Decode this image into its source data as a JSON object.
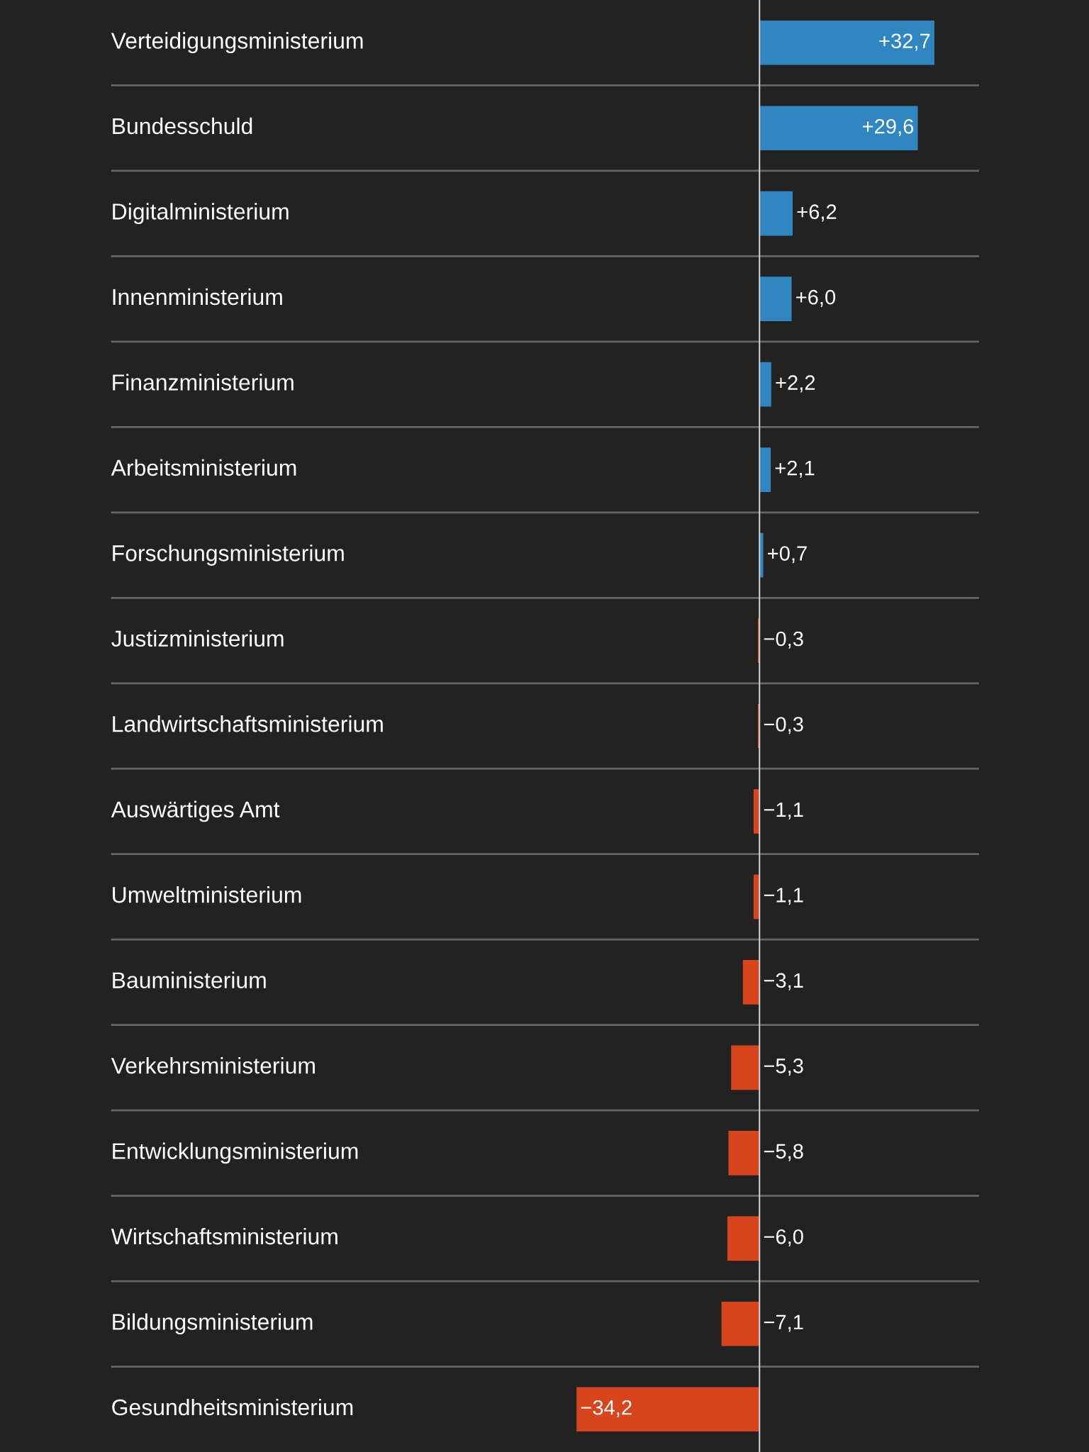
{
  "chart_data": {
    "type": "bar",
    "orientation": "horizontal",
    "grid": "y",
    "categories": [
      "Verteidigungsministerium",
      "Bundesschuld",
      "Digitalministerium",
      "Innenministerium",
      "Finanzministerium",
      "Arbeitsministerium",
      "Forschungsministerium",
      "Justizministerium",
      "Landwirtschaftsministerium",
      "Auswärtiges Amt",
      "Umweltministerium",
      "Bauministerium",
      "Verkehrsministerium",
      "Entwicklungsministerium",
      "Wirtschaftsministerium",
      "Bildungsministerium",
      "Gesundheitsministerium"
    ],
    "values": [
      32.7,
      29.6,
      6.2,
      6.0,
      2.2,
      2.1,
      0.7,
      -0.3,
      -0.3,
      -1.1,
      -1.1,
      -3.1,
      -5.3,
      -5.8,
      -6.0,
      -7.1,
      -34.2
    ],
    "colors": [
      "#2f86c0",
      "#2f86c0",
      "#2f86c0",
      "#2f86c0",
      "#2f86c0",
      "#2f86c0",
      "#2f86c0",
      "#d8441b",
      "#d8441b",
      "#d8441b",
      "#d8441b",
      "#d8441b",
      "#d8441b",
      "#d8441b",
      "#d8441b",
      "#d8441b",
      "#d8441b"
    ],
    "value_labels": [
      "+32,7",
      "+29,6",
      "+6,2",
      "+6,0",
      "+2,2",
      "+2,1",
      "+0,7",
      "−0,3",
      "−0,3",
      "−1,1",
      "−1,1",
      "−3,1",
      "−5,3",
      "−5,8",
      "−6,0",
      "−7,1",
      "−34,2"
    ]
  }
}
